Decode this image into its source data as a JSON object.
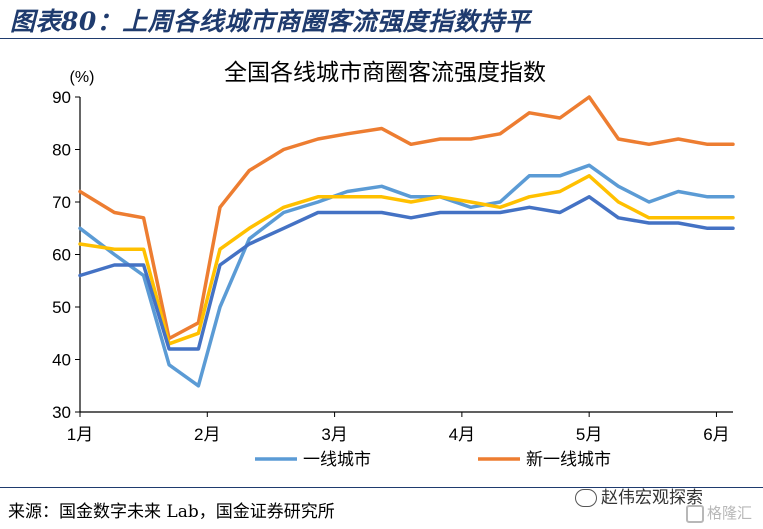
{
  "figure_title": "图表80：上周各线城市商圈客流强度指数持平",
  "source": "来源：国金数字未来 Lab，国金证券研究所",
  "wechat_account": "赵伟宏观探索",
  "watermark": "格隆汇",
  "chart_data": {
    "type": "line",
    "title": "全国各线城市商圈客流强度指数",
    "y_unit": "(%)",
    "ylim": [
      30,
      90
    ],
    "yticks": [
      30,
      40,
      50,
      60,
      70,
      80,
      90
    ],
    "xlim": [
      1,
      6.13
    ],
    "xticks": [
      {
        "label": "1月",
        "value": 1
      },
      {
        "label": "2月",
        "value": 2
      },
      {
        "label": "3月",
        "value": 3
      },
      {
        "label": "4月",
        "value": 4
      },
      {
        "label": "5月",
        "value": 5
      },
      {
        "label": "6月",
        "value": 6
      }
    ],
    "x": [
      1.0,
      1.27,
      1.5,
      1.7,
      1.93,
      2.1,
      2.33,
      2.6,
      2.87,
      3.1,
      3.37,
      3.6,
      3.83,
      4.07,
      4.3,
      4.53,
      4.77,
      5.0,
      5.23,
      5.47,
      5.7,
      5.93,
      6.13
    ],
    "series": [
      {
        "name": "一线城市",
        "color": "#5b9bd5",
        "values": [
          65,
          60,
          56,
          39,
          35,
          50,
          63,
          68,
          70,
          72,
          73,
          71,
          71,
          69,
          70,
          75,
          75,
          77,
          73,
          70,
          72,
          71,
          71
        ]
      },
      {
        "name": "新一线城市",
        "color": "#ed7d31",
        "values": [
          72,
          68,
          67,
          44,
          47,
          69,
          76,
          80,
          82,
          83,
          84,
          81,
          82,
          82,
          83,
          87,
          86,
          90,
          82,
          81,
          82,
          81,
          81
        ]
      },
      {
        "name": "",
        "color": "#ffc000",
        "values": [
          62,
          61,
          61,
          43,
          45,
          61,
          65,
          69,
          71,
          71,
          71,
          70,
          71,
          70,
          69,
          71,
          72,
          75,
          70,
          67,
          67,
          67,
          67
        ]
      },
      {
        "name": "",
        "color": "#4472c4",
        "values": [
          56,
          58,
          58,
          42,
          42,
          58,
          62,
          65,
          68,
          68,
          68,
          67,
          68,
          68,
          68,
          69,
          68,
          71,
          67,
          66,
          66,
          65,
          65
        ]
      }
    ],
    "legend_position": "bottom",
    "grid": false
  }
}
